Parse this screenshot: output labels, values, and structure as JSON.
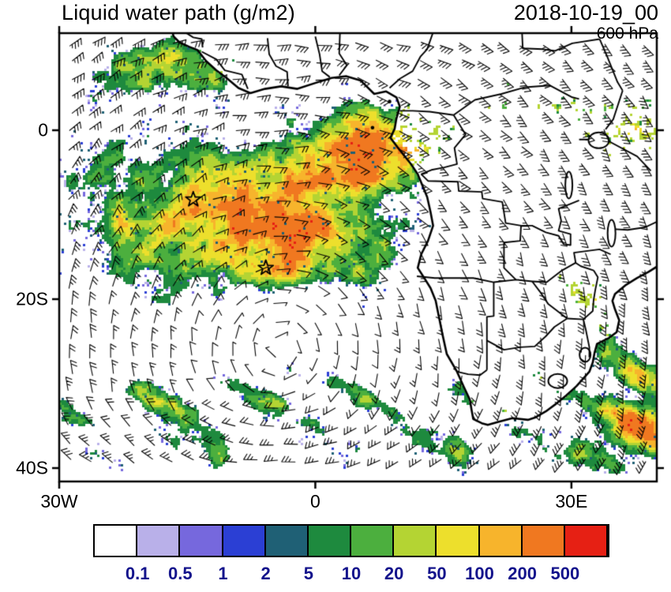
{
  "header": {
    "title": "Liquid water path (g/m2)",
    "datetime": "2018-10-19_00",
    "level": "600 hPa"
  },
  "chart_data": {
    "type": "heatmap",
    "title": "Liquid water path (g/m2)",
    "valid_time": "2018-10-19_00",
    "pressure_level": "600 hPa",
    "units": "g/m2",
    "projection": "lat-lon",
    "map_extent": {
      "lon_min": -30,
      "lon_max": 40,
      "lat_min": -41.6,
      "lat_max": 11.5
    },
    "x_axis": {
      "ticks": [
        {
          "label": "30W",
          "value": -30
        },
        {
          "label": "0",
          "value": 0
        },
        {
          "label": "30E",
          "value": 30
        }
      ]
    },
    "y_axis": {
      "ticks": [
        {
          "label": "0",
          "value": 0
        },
        {
          "label": "20S",
          "value": -20
        },
        {
          "label": "40S",
          "value": -40
        }
      ]
    },
    "colorbar": {
      "levels": [
        0.1,
        0.5,
        1,
        2,
        5,
        10,
        20,
        50,
        100,
        200,
        500
      ],
      "tick_labels": [
        "0.1",
        "0.5",
        "1",
        "2",
        "5",
        "10",
        "20",
        "50",
        "100",
        "200",
        "500"
      ],
      "colors": [
        "#FFFFFF",
        "#B9B0E9",
        "#7668DD",
        "#2B3FD4",
        "#1F6075",
        "#1E8A3E",
        "#4CAF3E",
        "#B4D433",
        "#EDDF2C",
        "#F7B42C",
        "#F07820",
        "#E62014"
      ],
      "label_color": "#14148C"
    },
    "overlays": [
      "wind-barbs-600hPa",
      "coastlines",
      "country-borders",
      "star-markers"
    ],
    "markers": [
      {
        "symbol": "star",
        "lon": -14.3,
        "lat": -8.2
      },
      {
        "symbol": "star",
        "lon": -5.8,
        "lat": -16.3
      }
    ],
    "field_summary": [
      {
        "region": "central South Atlantic (25W-5E, 5S-20S)",
        "lwp_gm2": "20-200 with 200-500 streaks"
      },
      {
        "region": "Gulf of Guinea / Angola coast",
        "lwp_gm2": "100-500"
      },
      {
        "region": "Southern Ocean bands (28S-41S)",
        "lwp_gm2": "10-100 zonal streaks"
      },
      {
        "region": "SE Africa (Mozambique/Zimbabwe)",
        "lwp_gm2": "scattered 20-500"
      },
      {
        "region": "African interior",
        "lwp_gm2": "mostly <0.1 (clear), scattered specks"
      }
    ]
  }
}
